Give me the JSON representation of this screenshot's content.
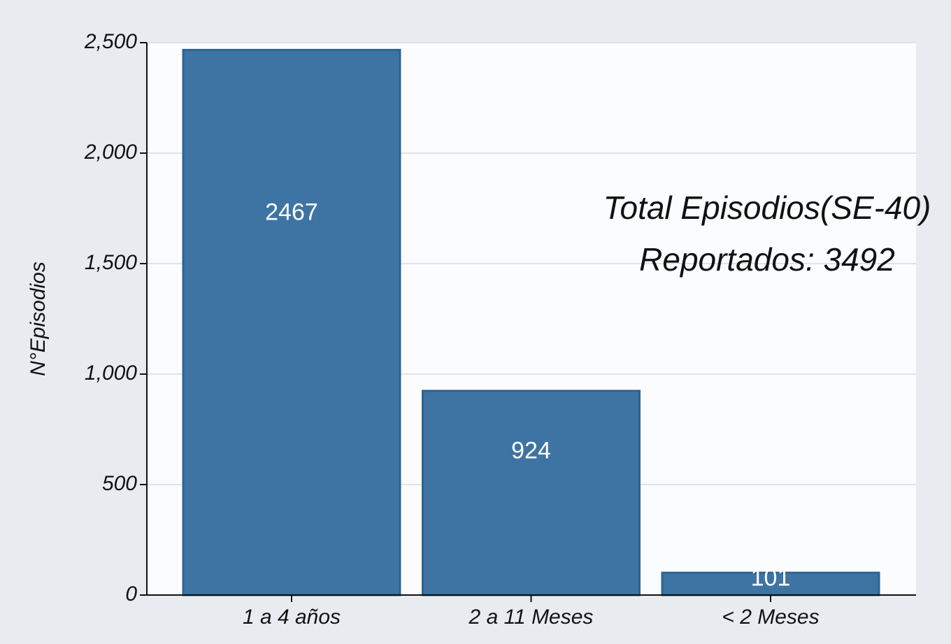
{
  "chart_data": {
    "type": "bar",
    "ylabel": "N°Episodios",
    "categories": [
      "1 a 4 años",
      "2 a 11 Meses",
      "< 2 Meses"
    ],
    "values": [
      2467,
      924,
      101
    ],
    "color": "#3e74a3",
    "ylim": [
      0,
      2500
    ],
    "yticks": [
      0,
      500,
      {
        "value": 1000,
        "label": "1,000"
      },
      {
        "value": 1500,
        "label": "1,500"
      },
      {
        "value": 2000,
        "label": "2,000"
      },
      {
        "value": 2500,
        "label": "2,500"
      }
    ],
    "grid": true,
    "annotations": [
      "Total Episodios(SE-40)",
      "Reportados: 3492"
    ]
  }
}
